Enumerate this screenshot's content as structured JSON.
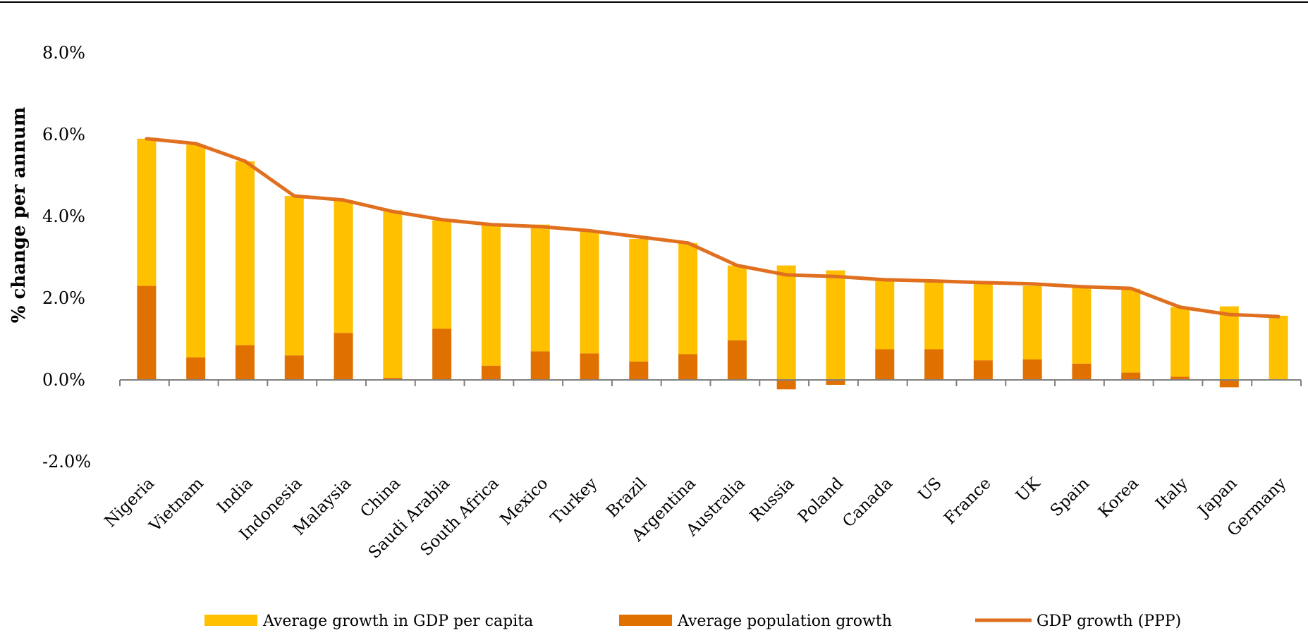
{
  "chart_data": {
    "type": "bar",
    "stacked": true,
    "title": "",
    "xlabel": "",
    "ylabel": "% change per annum",
    "ylim": [
      -0.02,
      0.08
    ],
    "yticks": [
      "-2.0%",
      "0.0%",
      "2.0%",
      "4.0%",
      "6.0%",
      "8.0%"
    ],
    "ytick_values": [
      -0.02,
      0.0,
      0.02,
      0.04,
      0.06,
      0.08
    ],
    "grid": false,
    "legend_position": "bottom",
    "categories": [
      "Nigeria",
      "Vietnam",
      "India",
      "Indonesia",
      "Malaysia",
      "China",
      "Saudi Arabia",
      "South Africa",
      "Mexico",
      "Turkey",
      "Brazil",
      "Argentina",
      "Australia",
      "Russia",
      "Poland",
      "Canada",
      "US",
      "France",
      "UK",
      "Spain",
      "Korea",
      "Italy",
      "Japan",
      "Germany"
    ],
    "series": [
      {
        "name": "Average population growth",
        "kind": "bar",
        "color": "#e07000",
        "values": [
          0.023,
          0.0055,
          0.0085,
          0.006,
          0.0115,
          0.0005,
          0.0125,
          0.0035,
          0.007,
          0.0065,
          0.0045,
          0.0063,
          0.0097,
          -0.0023,
          -0.0012,
          0.0075,
          0.0075,
          0.0048,
          0.005,
          0.004,
          0.0018,
          0.0008,
          -0.0018,
          0.0
        ]
      },
      {
        "name": "Average growth in GDP per capita",
        "kind": "bar",
        "color": "#ffc000",
        "values": [
          0.036,
          0.052,
          0.045,
          0.039,
          0.0325,
          0.041,
          0.0265,
          0.0345,
          0.031,
          0.03,
          0.03,
          0.0272,
          0.0183,
          0.028,
          0.0268,
          0.017,
          0.0165,
          0.019,
          0.018,
          0.0185,
          0.0205,
          0.017,
          0.018,
          0.0157
        ]
      },
      {
        "name": "GDP growth (PPP)",
        "kind": "line",
        "color": "#e07020",
        "values": [
          0.059,
          0.0578,
          0.0535,
          0.045,
          0.044,
          0.0412,
          0.0392,
          0.038,
          0.0375,
          0.0365,
          0.035,
          0.0335,
          0.028,
          0.0257,
          0.0253,
          0.0245,
          0.0242,
          0.0238,
          0.0235,
          0.0228,
          0.0224,
          0.0178,
          0.016,
          0.0155
        ]
      }
    ]
  }
}
